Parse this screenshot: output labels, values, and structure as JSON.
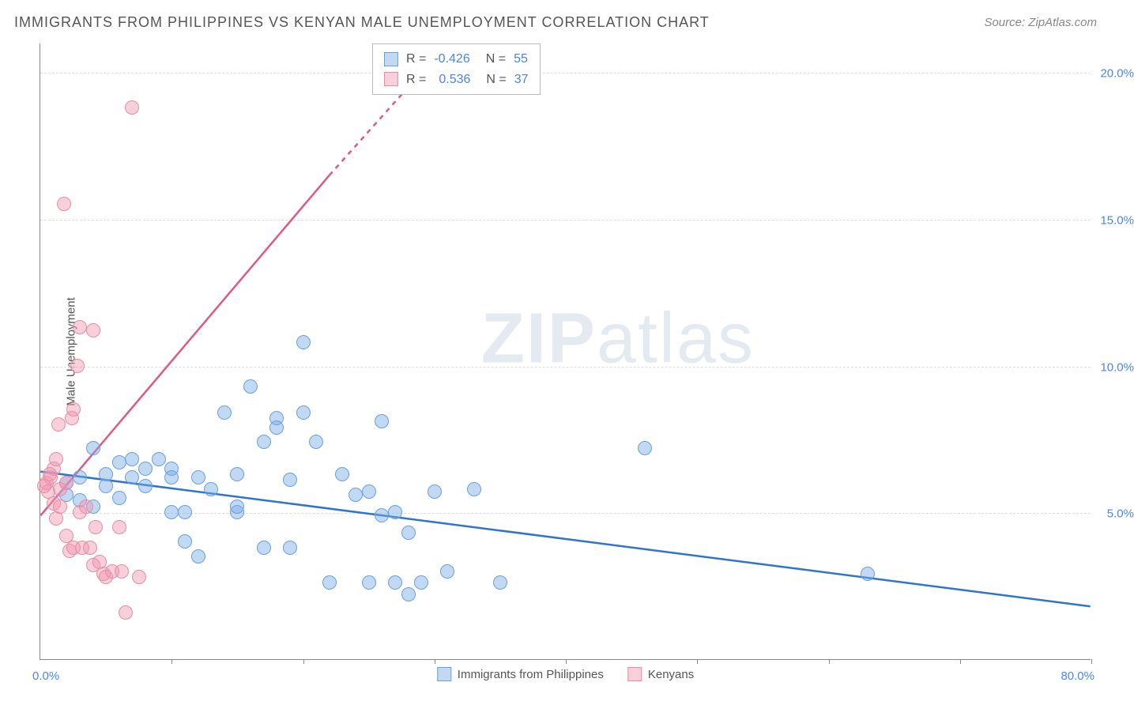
{
  "title": "IMMIGRANTS FROM PHILIPPINES VS KENYAN MALE UNEMPLOYMENT CORRELATION CHART",
  "source": "Source: ZipAtlas.com",
  "watermark": {
    "zip": "ZIP",
    "atlas": "atlas"
  },
  "y_axis": {
    "title": "Male Unemployment",
    "min": 0.0,
    "max": 21.0,
    "ticks": [
      5.0,
      10.0,
      15.0,
      20.0
    ],
    "tick_labels": [
      "5.0%",
      "10.0%",
      "15.0%",
      "20.0%"
    ],
    "label_color": "#4a86e8",
    "label_fontsize": 15
  },
  "x_axis": {
    "min": 0.0,
    "max": 80.0,
    "ticks": [
      10,
      20,
      30,
      40,
      50,
      60,
      70,
      80
    ],
    "label_left": "0.0%",
    "label_right": "80.0%",
    "label_color": "#4a86e8"
  },
  "series": [
    {
      "name": "Immigrants from Philippines",
      "color_fill": "rgba(120,170,230,0.45)",
      "color_stroke": "#6aa0df",
      "line_color": "#2e74d0",
      "marker_radius": 9,
      "correlation": {
        "R": "-0.426",
        "N": "55"
      },
      "regression": {
        "x1": 0,
        "y1": 6.4,
        "x2": 80,
        "y2": 1.8
      },
      "points": [
        [
          2,
          6.0
        ],
        [
          3,
          6.2
        ],
        [
          4,
          7.2
        ],
        [
          5,
          6.3
        ],
        [
          6,
          6.7
        ],
        [
          7,
          6.8
        ],
        [
          7,
          6.2
        ],
        [
          8,
          5.9
        ],
        [
          8,
          6.5
        ],
        [
          9,
          6.8
        ],
        [
          10,
          5.0
        ],
        [
          10,
          6.5
        ],
        [
          10,
          6.2
        ],
        [
          11,
          5.0
        ],
        [
          11,
          4.0
        ],
        [
          12,
          6.2
        ],
        [
          12,
          3.5
        ],
        [
          13,
          5.8
        ],
        [
          14,
          8.4
        ],
        [
          15,
          5.0
        ],
        [
          15,
          6.3
        ],
        [
          16,
          9.3
        ],
        [
          17,
          7.4
        ],
        [
          17,
          3.8
        ],
        [
          18,
          8.2
        ],
        [
          18,
          7.9
        ],
        [
          19,
          6.1
        ],
        [
          19,
          3.8
        ],
        [
          20,
          10.8
        ],
        [
          20,
          8.4
        ],
        [
          21,
          7.4
        ],
        [
          22,
          2.6
        ],
        [
          23,
          6.3
        ],
        [
          24,
          5.6
        ],
        [
          25,
          5.7
        ],
        [
          25,
          2.6
        ],
        [
          26,
          4.9
        ],
        [
          26,
          8.1
        ],
        [
          27,
          5.0
        ],
        [
          27,
          2.6
        ],
        [
          28,
          2.2
        ],
        [
          28,
          4.3
        ],
        [
          29,
          2.6
        ],
        [
          30,
          5.7
        ],
        [
          31,
          3.0
        ],
        [
          33,
          5.8
        ],
        [
          35,
          2.6
        ],
        [
          46,
          7.2
        ],
        [
          63,
          2.9
        ],
        [
          2,
          5.6
        ],
        [
          3,
          5.4
        ],
        [
          4,
          5.2
        ],
        [
          5,
          5.9
        ],
        [
          6,
          5.5
        ],
        [
          15,
          5.2
        ]
      ]
    },
    {
      "name": "Kenyans",
      "color_fill": "rgba(240,150,175,0.45)",
      "color_stroke": "#e88ca5",
      "line_color": "#e05a80",
      "marker_radius": 9,
      "correlation": {
        "R": "0.536",
        "N": "37"
      },
      "regression_solid": {
        "x1": 0,
        "y1": 4.9,
        "x2": 22,
        "y2": 16.5
      },
      "regression_dashed": {
        "x1": 22,
        "y1": 16.5,
        "x2": 35,
        "y2": 23.0
      },
      "points": [
        [
          0.5,
          6.0
        ],
        [
          0.6,
          5.7
        ],
        [
          0.8,
          6.2
        ],
        [
          1.0,
          6.5
        ],
        [
          1.0,
          5.3
        ],
        [
          1.2,
          6.8
        ],
        [
          1.2,
          4.8
        ],
        [
          1.4,
          8.0
        ],
        [
          1.5,
          5.8
        ],
        [
          1.5,
          5.2
        ],
        [
          1.8,
          15.5
        ],
        [
          2.0,
          4.2
        ],
        [
          2.0,
          6.0
        ],
        [
          2.2,
          3.7
        ],
        [
          2.4,
          8.2
        ],
        [
          2.5,
          8.5
        ],
        [
          2.5,
          3.8
        ],
        [
          2.8,
          10.0
        ],
        [
          3.0,
          11.3
        ],
        [
          3.0,
          5.0
        ],
        [
          3.2,
          3.8
        ],
        [
          3.5,
          5.2
        ],
        [
          3.8,
          3.8
        ],
        [
          4.0,
          11.2
        ],
        [
          4.0,
          3.2
        ],
        [
          4.2,
          4.5
        ],
        [
          4.5,
          3.3
        ],
        [
          4.8,
          2.9
        ],
        [
          5.0,
          2.8
        ],
        [
          5.5,
          3.0
        ],
        [
          6.0,
          4.5
        ],
        [
          6.2,
          3.0
        ],
        [
          6.5,
          1.6
        ],
        [
          7.0,
          18.8
        ],
        [
          7.5,
          2.8
        ],
        [
          0.3,
          5.9
        ],
        [
          0.7,
          6.3
        ]
      ]
    }
  ],
  "legend_top": {
    "r_label": "R =",
    "n_label": "N ="
  },
  "grid_color": "#ddd",
  "axis_color": "#888",
  "background_color": "#ffffff"
}
